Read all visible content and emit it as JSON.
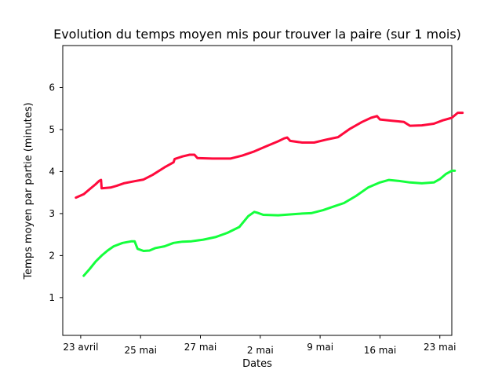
{
  "chart_data": {
    "type": "line",
    "title": "Evolution du temps moyen mis pour trouver la paire (sur 1 mois)",
    "xlabel": "Dates",
    "ylabel": "Temps moyen par partie (minutes)",
    "ylim": [
      0.1,
      7.0
    ],
    "x_ticks": [
      {
        "label": "23 avril",
        "pos": 0.0
      },
      {
        "label": "25 mai",
        "pos": 1.0
      },
      {
        "label": "27 mai",
        "pos": 2.0
      },
      {
        "label": "2 mai",
        "pos": 3.0
      },
      {
        "label": "9 mai",
        "pos": 4.0
      },
      {
        "label": "16 mai",
        "pos": 5.0
      },
      {
        "label": "23 mai",
        "pos": 6.0
      }
    ],
    "y_ticks": [
      1,
      2,
      3,
      4,
      5,
      6
    ],
    "xlim": [
      -0.3,
      6.2
    ],
    "grid": false,
    "series": [
      {
        "color": "#ff0a3c",
        "points": [
          [
            -0.08,
            3.38
          ],
          [
            0.05,
            3.46
          ],
          [
            0.15,
            3.58
          ],
          [
            0.25,
            3.7
          ],
          [
            0.31,
            3.78
          ],
          [
            0.34,
            3.8
          ],
          [
            0.35,
            3.6
          ],
          [
            0.5,
            3.62
          ],
          [
            0.6,
            3.66
          ],
          [
            0.72,
            3.72
          ],
          [
            0.9,
            3.77
          ],
          [
            1.05,
            3.81
          ],
          [
            1.2,
            3.92
          ],
          [
            1.4,
            4.1
          ],
          [
            1.55,
            4.22
          ],
          [
            1.57,
            4.3
          ],
          [
            1.7,
            4.36
          ],
          [
            1.82,
            4.4
          ],
          [
            1.9,
            4.4
          ],
          [
            1.95,
            4.32
          ],
          [
            2.2,
            4.31
          ],
          [
            2.5,
            4.31
          ],
          [
            2.7,
            4.38
          ],
          [
            2.9,
            4.48
          ],
          [
            3.1,
            4.6
          ],
          [
            3.3,
            4.72
          ],
          [
            3.4,
            4.79
          ],
          [
            3.45,
            4.81
          ],
          [
            3.5,
            4.73
          ],
          [
            3.7,
            4.69
          ],
          [
            3.9,
            4.69
          ],
          [
            4.1,
            4.76
          ],
          [
            4.3,
            4.82
          ],
          [
            4.5,
            5.02
          ],
          [
            4.7,
            5.18
          ],
          [
            4.85,
            5.28
          ],
          [
            4.95,
            5.32
          ],
          [
            5.0,
            5.24
          ],
          [
            5.2,
            5.21
          ],
          [
            5.4,
            5.18
          ],
          [
            5.5,
            5.09
          ],
          [
            5.7,
            5.1
          ],
          [
            5.9,
            5.14
          ],
          [
            6.05,
            5.22
          ],
          [
            6.2,
            5.28
          ],
          [
            6.3,
            5.4
          ],
          [
            6.38,
            5.4
          ]
        ]
      },
      {
        "color": "#14ff3c",
        "points": [
          [
            0.05,
            1.52
          ],
          [
            0.15,
            1.68
          ],
          [
            0.25,
            1.86
          ],
          [
            0.35,
            2.0
          ],
          [
            0.45,
            2.12
          ],
          [
            0.55,
            2.22
          ],
          [
            0.7,
            2.3
          ],
          [
            0.85,
            2.34
          ],
          [
            0.9,
            2.34
          ],
          [
            0.95,
            2.16
          ],
          [
            1.05,
            2.11
          ],
          [
            1.15,
            2.12
          ],
          [
            1.25,
            2.18
          ],
          [
            1.4,
            2.22
          ],
          [
            1.55,
            2.3
          ],
          [
            1.7,
            2.33
          ],
          [
            1.85,
            2.34
          ],
          [
            2.05,
            2.38
          ],
          [
            2.25,
            2.44
          ],
          [
            2.45,
            2.54
          ],
          [
            2.65,
            2.68
          ],
          [
            2.8,
            2.94
          ],
          [
            2.9,
            3.04
          ],
          [
            2.95,
            3.02
          ],
          [
            3.05,
            2.97
          ],
          [
            3.3,
            2.96
          ],
          [
            3.5,
            2.98
          ],
          [
            3.7,
            3.0
          ],
          [
            3.85,
            3.01
          ],
          [
            4.05,
            3.08
          ],
          [
            4.25,
            3.18
          ],
          [
            4.4,
            3.25
          ],
          [
            4.6,
            3.42
          ],
          [
            4.8,
            3.62
          ],
          [
            5.0,
            3.74
          ],
          [
            5.15,
            3.8
          ],
          [
            5.3,
            3.78
          ],
          [
            5.5,
            3.74
          ],
          [
            5.7,
            3.72
          ],
          [
            5.9,
            3.74
          ],
          [
            6.0,
            3.82
          ],
          [
            6.1,
            3.94
          ],
          [
            6.2,
            4.02
          ],
          [
            6.25,
            4.02
          ]
        ]
      }
    ]
  }
}
